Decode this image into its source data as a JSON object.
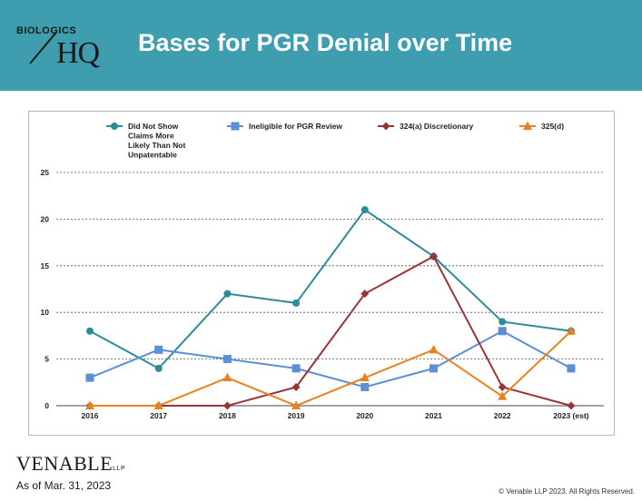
{
  "header": {
    "logo_top": "BIOLOGICS",
    "logo_hq": "HQ",
    "title": "Bases for PGR Denial over Time"
  },
  "footer": {
    "logo": "VENABLE",
    "logo_suffix": "LLP",
    "as_of": "As of Mar. 31, 2023",
    "copyright": "© Venable LLP 2023. All Rights Reserved."
  },
  "chart_data": {
    "type": "line",
    "title": "",
    "xlabel": "",
    "ylabel": "",
    "categories": [
      "2016",
      "2017",
      "2018",
      "2019",
      "2020",
      "2021",
      "2022",
      "2023 (est)"
    ],
    "ylim": [
      0,
      25
    ],
    "yticks": [
      0,
      5,
      10,
      15,
      20,
      25
    ],
    "grid": "horizontal dashed",
    "legend_position": "top",
    "series": [
      {
        "name": "Did Not Show Claims More Likely Than Not Unpatentable",
        "legend_lines": [
          "Did Not Show",
          "Claims More",
          "Likely Than Not",
          "Unpatentable"
        ],
        "marker": "circle",
        "color": "#2e8b9a",
        "values": [
          8,
          4,
          12,
          11,
          21,
          16,
          9,
          8
        ]
      },
      {
        "name": "Ineligible for PGR Review",
        "legend_lines": [
          "Ineligible for PGR Review"
        ],
        "marker": "square",
        "color": "#5b8fd6",
        "values": [
          3,
          6,
          5,
          4,
          2,
          4,
          8,
          4
        ]
      },
      {
        "name": "324(a) Discretionary",
        "legend_lines": [
          "324(a) Discretionary"
        ],
        "marker": "diamond",
        "color": "#9b3535",
        "values": [
          0,
          0,
          0,
          2,
          12,
          16,
          2,
          0
        ]
      },
      {
        "name": "325(d)",
        "legend_lines": [
          "325(d)"
        ],
        "marker": "triangle",
        "color": "#e8821e",
        "values": [
          0,
          0,
          3,
          0,
          3,
          6,
          1,
          8
        ]
      }
    ]
  }
}
